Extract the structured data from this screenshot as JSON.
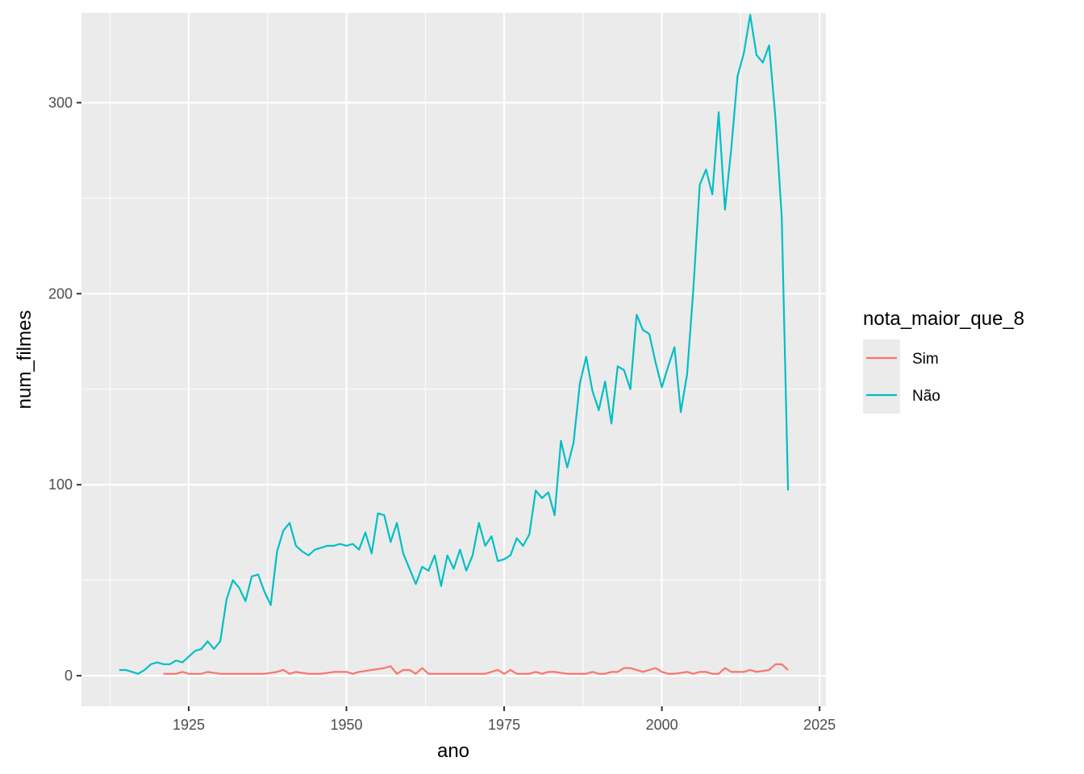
{
  "chart_data": {
    "type": "line",
    "title": "",
    "xlabel": "ano",
    "ylabel": "num_filmes",
    "xlim": [
      1908,
      2026
    ],
    "ylim": [
      -16,
      347
    ],
    "x_ticks": [
      1925,
      1950,
      1975,
      2000,
      2025
    ],
    "x_tick_labels": [
      "1925",
      "1950",
      "1975",
      "2000",
      "2025"
    ],
    "y_ticks": [
      0,
      100,
      200,
      300
    ],
    "y_tick_labels": [
      "0",
      "100",
      "200",
      "300"
    ],
    "grid": true,
    "legend": {
      "title": "nota_maior_que_8",
      "position": "right"
    },
    "series": [
      {
        "name": "Sim",
        "color": "#F8766D",
        "points": [
          [
            1921,
            1
          ],
          [
            1922,
            1
          ],
          [
            1923,
            1
          ],
          [
            1924,
            2
          ],
          [
            1925,
            1
          ],
          [
            1926,
            1
          ],
          [
            1927,
            1
          ],
          [
            1928,
            2
          ],
          [
            1929,
            1.5
          ],
          [
            1930,
            1
          ],
          [
            1931,
            1
          ],
          [
            1932,
            1
          ],
          [
            1933,
            1
          ],
          [
            1934,
            1
          ],
          [
            1935,
            1
          ],
          [
            1936,
            1
          ],
          [
            1937,
            1
          ],
          [
            1938,
            1.5
          ],
          [
            1939,
            2
          ],
          [
            1940,
            3
          ],
          [
            1941,
            1
          ],
          [
            1942,
            2
          ],
          [
            1943,
            1.5
          ],
          [
            1944,
            1
          ],
          [
            1945,
            1
          ],
          [
            1946,
            1
          ],
          [
            1947,
            1.5
          ],
          [
            1948,
            2
          ],
          [
            1949,
            2
          ],
          [
            1950,
            2
          ],
          [
            1951,
            1
          ],
          [
            1952,
            2
          ],
          [
            1953,
            2.5
          ],
          [
            1954,
            3
          ],
          [
            1955,
            3.5
          ],
          [
            1956,
            4
          ],
          [
            1957,
            5
          ],
          [
            1958,
            1
          ],
          [
            1959,
            3
          ],
          [
            1960,
            3
          ],
          [
            1961,
            1
          ],
          [
            1962,
            4
          ],
          [
            1963,
            1
          ],
          [
            1964,
            1
          ],
          [
            1965,
            1
          ],
          [
            1966,
            1
          ],
          [
            1967,
            1
          ],
          [
            1968,
            1
          ],
          [
            1969,
            1
          ],
          [
            1970,
            1
          ],
          [
            1971,
            1
          ],
          [
            1972,
            1
          ],
          [
            1973,
            2
          ],
          [
            1974,
            3
          ],
          [
            1975,
            1
          ],
          [
            1976,
            3
          ],
          [
            1977,
            1
          ],
          [
            1978,
            1
          ],
          [
            1979,
            1
          ],
          [
            1980,
            2
          ],
          [
            1981,
            1
          ],
          [
            1982,
            2
          ],
          [
            1983,
            2
          ],
          [
            1984,
            1.5
          ],
          [
            1985,
            1
          ],
          [
            1986,
            1
          ],
          [
            1987,
            1
          ],
          [
            1988,
            1
          ],
          [
            1989,
            2
          ],
          [
            1990,
            1
          ],
          [
            1991,
            1
          ],
          [
            1992,
            2
          ],
          [
            1993,
            2
          ],
          [
            1994,
            4
          ],
          [
            1995,
            4
          ],
          [
            1996,
            3
          ],
          [
            1997,
            2
          ],
          [
            1998,
            3
          ],
          [
            1999,
            4
          ],
          [
            2000,
            2
          ],
          [
            2001,
            1
          ],
          [
            2002,
            1
          ],
          [
            2003,
            1.5
          ],
          [
            2004,
            2
          ],
          [
            2005,
            1
          ],
          [
            2006,
            2
          ],
          [
            2007,
            2
          ],
          [
            2008,
            1
          ],
          [
            2009,
            1
          ],
          [
            2010,
            4
          ],
          [
            2011,
            2
          ],
          [
            2012,
            2
          ],
          [
            2013,
            2
          ],
          [
            2014,
            3
          ],
          [
            2015,
            2
          ],
          [
            2016,
            2.5
          ],
          [
            2017,
            3
          ],
          [
            2018,
            6
          ],
          [
            2019,
            6
          ],
          [
            2020,
            3
          ]
        ]
      },
      {
        "name": "Não",
        "color": "#00BFC4",
        "points": [
          [
            1914,
            3
          ],
          [
            1915,
            3
          ],
          [
            1916,
            2
          ],
          [
            1917,
            1
          ],
          [
            1918,
            3
          ],
          [
            1919,
            6
          ],
          [
            1920,
            7
          ],
          [
            1921,
            6
          ],
          [
            1922,
            6
          ],
          [
            1923,
            8
          ],
          [
            1924,
            7
          ],
          [
            1925,
            10
          ],
          [
            1926,
            13
          ],
          [
            1927,
            14
          ],
          [
            1928,
            18
          ],
          [
            1929,
            14
          ],
          [
            1930,
            18
          ],
          [
            1931,
            40
          ],
          [
            1932,
            50
          ],
          [
            1933,
            46
          ],
          [
            1934,
            39
          ],
          [
            1935,
            52
          ],
          [
            1936,
            53
          ],
          [
            1937,
            44
          ],
          [
            1938,
            37
          ],
          [
            1939,
            65
          ],
          [
            1940,
            76
          ],
          [
            1941,
            80
          ],
          [
            1942,
            68
          ],
          [
            1943,
            65
          ],
          [
            1944,
            63
          ],
          [
            1945,
            66
          ],
          [
            1946,
            67
          ],
          [
            1947,
            68
          ],
          [
            1948,
            68
          ],
          [
            1949,
            69
          ],
          [
            1950,
            68
          ],
          [
            1951,
            69
          ],
          [
            1952,
            66
          ],
          [
            1953,
            75
          ],
          [
            1954,
            64
          ],
          [
            1955,
            85
          ],
          [
            1956,
            84
          ],
          [
            1957,
            70
          ],
          [
            1958,
            80
          ],
          [
            1959,
            64
          ],
          [
            1960,
            56
          ],
          [
            1961,
            48
          ],
          [
            1962,
            57
          ],
          [
            1963,
            55
          ],
          [
            1964,
            63
          ],
          [
            1965,
            47
          ],
          [
            1966,
            63
          ],
          [
            1967,
            56
          ],
          [
            1968,
            66
          ],
          [
            1969,
            55
          ],
          [
            1970,
            63
          ],
          [
            1971,
            80
          ],
          [
            1972,
            68
          ],
          [
            1973,
            73
          ],
          [
            1974,
            60
          ],
          [
            1975,
            61
          ],
          [
            1976,
            63
          ],
          [
            1977,
            72
          ],
          [
            1978,
            68
          ],
          [
            1979,
            74
          ],
          [
            1980,
            97
          ],
          [
            1981,
            93
          ],
          [
            1982,
            96
          ],
          [
            1983,
            84
          ],
          [
            1984,
            123
          ],
          [
            1985,
            109
          ],
          [
            1986,
            122
          ],
          [
            1987,
            153
          ],
          [
            1988,
            167
          ],
          [
            1989,
            149
          ],
          [
            1990,
            139
          ],
          [
            1991,
            154
          ],
          [
            1992,
            132
          ],
          [
            1993,
            162
          ],
          [
            1994,
            160
          ],
          [
            1995,
            150
          ],
          [
            1996,
            189
          ],
          [
            1997,
            181
          ],
          [
            1998,
            179
          ],
          [
            1999,
            164
          ],
          [
            2000,
            151
          ],
          [
            2001,
            162
          ],
          [
            2002,
            172
          ],
          [
            2003,
            138
          ],
          [
            2004,
            158
          ],
          [
            2005,
            203
          ],
          [
            2006,
            257
          ],
          [
            2007,
            265
          ],
          [
            2008,
            252
          ],
          [
            2009,
            295
          ],
          [
            2010,
            244
          ],
          [
            2011,
            276
          ],
          [
            2012,
            314
          ],
          [
            2013,
            326
          ],
          [
            2014,
            346
          ],
          [
            2015,
            325
          ],
          [
            2016,
            321
          ],
          [
            2017,
            330
          ],
          [
            2018,
            292
          ],
          [
            2019,
            240
          ],
          [
            2020,
            97
          ]
        ]
      }
    ]
  }
}
